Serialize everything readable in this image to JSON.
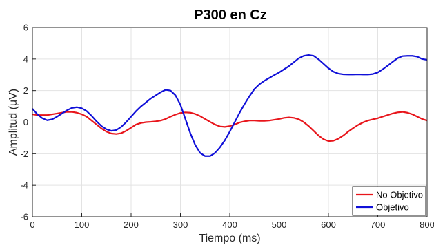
{
  "chart_data": {
    "type": "line",
    "title": "P300 en Cz",
    "xlabel": "Tiempo (ms)",
    "ylabel": "Amplitud (μV)",
    "xlim": [
      0,
      800
    ],
    "ylim": [
      -6,
      6
    ],
    "xticks": [
      0,
      100,
      200,
      300,
      400,
      500,
      600,
      700,
      800
    ],
    "yticks": [
      -6,
      -4,
      -2,
      0,
      2,
      4,
      6
    ],
    "grid": true,
    "legend_position": "bottom-right",
    "series": [
      {
        "name": "No Objetivo",
        "color": "#e8151b",
        "x": [
          0,
          10,
          20,
          30,
          40,
          50,
          60,
          70,
          80,
          90,
          100,
          110,
          120,
          130,
          140,
          150,
          160,
          170,
          180,
          190,
          200,
          210,
          220,
          230,
          240,
          250,
          260,
          270,
          280,
          290,
          300,
          310,
          320,
          330,
          340,
          350,
          360,
          370,
          380,
          390,
          400,
          410,
          420,
          430,
          440,
          450,
          460,
          470,
          480,
          490,
          500,
          510,
          520,
          530,
          540,
          550,
          560,
          570,
          580,
          590,
          600,
          610,
          620,
          630,
          640,
          650,
          660,
          670,
          680,
          690,
          700,
          710,
          720,
          730,
          740,
          750,
          760,
          770,
          780,
          790,
          800
        ],
        "y": [
          0.5,
          0.45,
          0.45,
          0.45,
          0.5,
          0.55,
          0.6,
          0.65,
          0.65,
          0.6,
          0.5,
          0.35,
          0.1,
          -0.15,
          -0.4,
          -0.6,
          -0.72,
          -0.75,
          -0.7,
          -0.55,
          -0.35,
          -0.15,
          -0.05,
          0.0,
          0.02,
          0.05,
          0.1,
          0.2,
          0.35,
          0.48,
          0.58,
          0.62,
          0.6,
          0.52,
          0.38,
          0.2,
          0.02,
          -0.15,
          -0.27,
          -0.3,
          -0.25,
          -0.15,
          -0.02,
          0.05,
          0.1,
          0.1,
          0.08,
          0.08,
          0.1,
          0.15,
          0.2,
          0.27,
          0.3,
          0.27,
          0.18,
          0.0,
          -0.25,
          -0.55,
          -0.85,
          -1.08,
          -1.2,
          -1.18,
          -1.05,
          -0.85,
          -0.6,
          -0.38,
          -0.18,
          -0.02,
          0.1,
          0.18,
          0.25,
          0.35,
          0.45,
          0.55,
          0.62,
          0.65,
          0.6,
          0.5,
          0.35,
          0.2,
          0.1
        ]
      },
      {
        "name": "Objetivo",
        "color": "#1010d8",
        "x": [
          0,
          10,
          20,
          30,
          40,
          50,
          60,
          70,
          80,
          90,
          100,
          110,
          120,
          130,
          140,
          150,
          160,
          170,
          180,
          190,
          200,
          210,
          220,
          230,
          240,
          250,
          260,
          270,
          280,
          290,
          300,
          310,
          320,
          330,
          340,
          350,
          360,
          370,
          380,
          390,
          400,
          410,
          420,
          430,
          440,
          450,
          460,
          470,
          480,
          490,
          500,
          510,
          520,
          530,
          540,
          550,
          560,
          570,
          580,
          590,
          600,
          610,
          620,
          630,
          640,
          650,
          660,
          670,
          680,
          690,
          700,
          710,
          720,
          730,
          740,
          750,
          760,
          770,
          780,
          790,
          800
        ],
        "y": [
          0.85,
          0.5,
          0.25,
          0.12,
          0.18,
          0.35,
          0.55,
          0.75,
          0.9,
          0.95,
          0.88,
          0.7,
          0.4,
          0.05,
          -0.25,
          -0.45,
          -0.55,
          -0.5,
          -0.3,
          0.0,
          0.35,
          0.7,
          1.0,
          1.25,
          1.5,
          1.7,
          1.9,
          2.05,
          2.0,
          1.7,
          1.1,
          0.2,
          -0.7,
          -1.45,
          -1.95,
          -2.15,
          -2.15,
          -1.95,
          -1.6,
          -1.15,
          -0.6,
          0.0,
          0.6,
          1.15,
          1.65,
          2.1,
          2.4,
          2.62,
          2.8,
          2.98,
          3.15,
          3.35,
          3.55,
          3.8,
          4.05,
          4.2,
          4.25,
          4.2,
          3.98,
          3.7,
          3.42,
          3.2,
          3.08,
          3.03,
          3.02,
          3.02,
          3.03,
          3.02,
          3.02,
          3.05,
          3.15,
          3.35,
          3.58,
          3.82,
          4.05,
          4.18,
          4.2,
          4.2,
          4.15,
          4.0,
          3.95
        ]
      }
    ]
  }
}
